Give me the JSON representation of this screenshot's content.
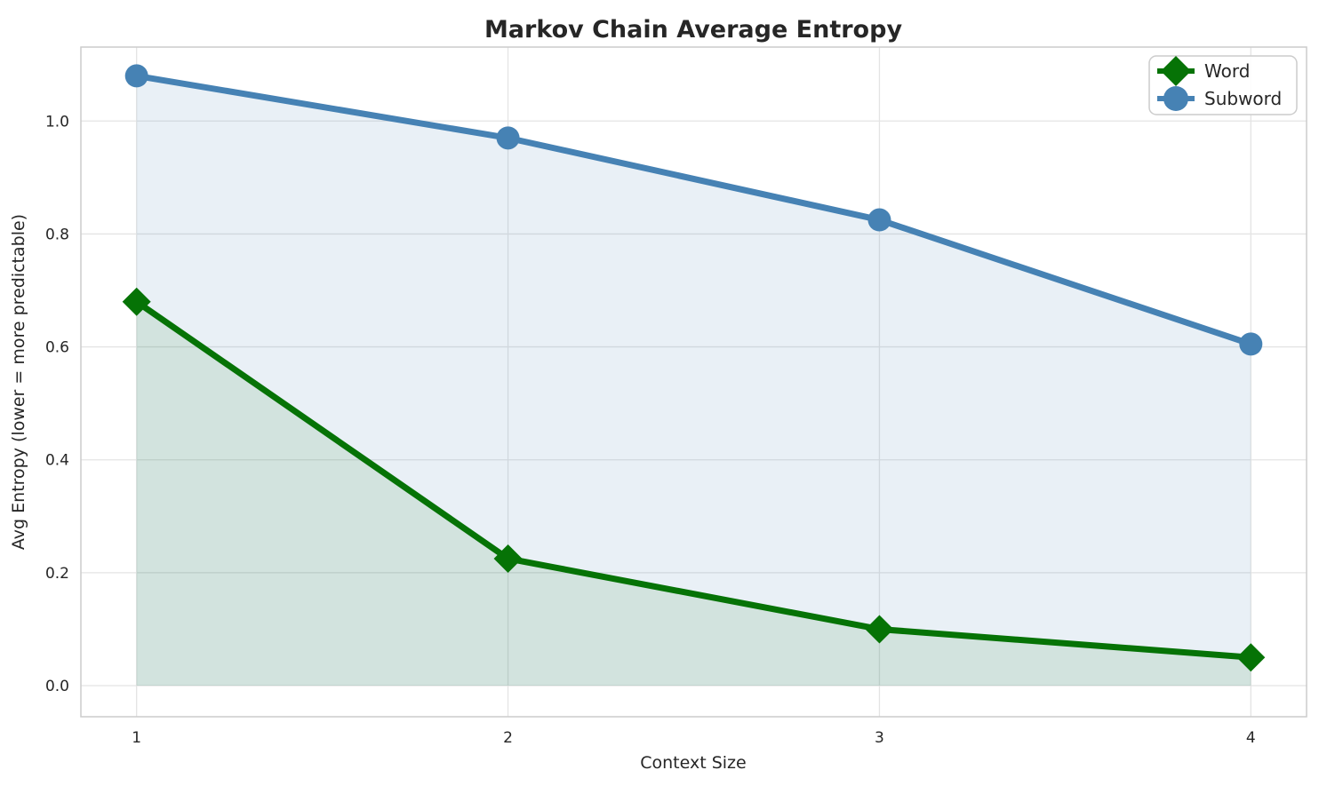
{
  "chart_data": {
    "type": "line",
    "title": "Markov Chain Average Entropy",
    "xlabel": "Context Size",
    "ylabel": "Avg Entropy (lower = more predictable)",
    "x": [
      1,
      2,
      3,
      4
    ],
    "series": [
      {
        "name": "Word",
        "slug": "word",
        "values": [
          0.68,
          0.225,
          0.1,
          0.05
        ],
        "color": "#067306",
        "fill_alpha": 0.1,
        "marker": "diamond"
      },
      {
        "name": "Subword",
        "slug": "subword",
        "values": [
          1.08,
          0.97,
          0.825,
          0.605
        ],
        "color": "#4682b4",
        "fill_alpha": 0.12,
        "marker": "circle"
      }
    ],
    "xticks": [
      {
        "v": 1,
        "label": "1"
      },
      {
        "v": 2,
        "label": "2"
      },
      {
        "v": 3,
        "label": "3"
      },
      {
        "v": 4,
        "label": "4"
      }
    ],
    "yticks": [
      {
        "v": 0.0,
        "label": "0.0"
      },
      {
        "v": 0.2,
        "label": "0.2"
      },
      {
        "v": 0.4,
        "label": "0.4"
      },
      {
        "v": 0.6,
        "label": "0.6"
      },
      {
        "v": 0.8,
        "label": "0.8"
      },
      {
        "v": 1.0,
        "label": "1.0"
      }
    ],
    "xlim": [
      0.85,
      4.15
    ],
    "ylim": [
      -0.055,
      1.131
    ],
    "grid": true,
    "area_fill_to_zero": true,
    "legend": {
      "position": "upper right",
      "entries": [
        "Word",
        "Subword"
      ]
    },
    "style": {
      "grid_color": "#e4e4e4",
      "spine_color": "#cccccc",
      "text_color": "#262626",
      "background": "#ffffff",
      "legend_border": "#cccccc",
      "legend_background": "#ffffff"
    }
  }
}
